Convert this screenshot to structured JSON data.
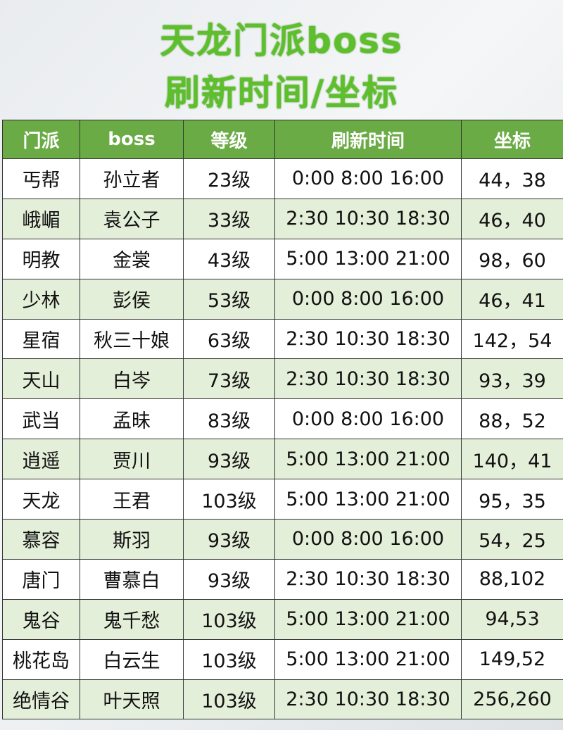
{
  "title_line1": "天龙门派boss",
  "title_line2": "刷新时间/坐标",
  "colors": {
    "title_green": "#5dbf2c",
    "header_green": "#6aab45",
    "alt_row": "#e4efd9"
  },
  "table": {
    "headers": [
      "门派",
      "boss",
      "等级",
      "刷新时间",
      "坐标"
    ],
    "rows": [
      [
        "丐帮",
        "孙立者",
        "23级",
        "0:00 8:00 16:00",
        "44，38"
      ],
      [
        "峨嵋",
        "袁公子",
        "33级",
        "2:30 10:30 18:30",
        "46，40"
      ],
      [
        "明教",
        "金裳",
        "43级",
        "5:00 13:00 21:00",
        "98，60"
      ],
      [
        "少林",
        "彭侯",
        "53级",
        "0:00 8:00 16:00",
        "46，41"
      ],
      [
        "星宿",
        "秋三十娘",
        "63级",
        "2:30 10:30 18:30",
        "142，54"
      ],
      [
        "天山",
        "白岑",
        "73级",
        "2:30 10:30 18:30",
        "93，39"
      ],
      [
        "武当",
        "孟昧",
        "83级",
        "0:00 8:00 16:00",
        "88，52"
      ],
      [
        "逍遥",
        "贾川",
        "93级",
        "5:00 13:00 21:00",
        "140，41"
      ],
      [
        "天龙",
        "王君",
        "103级",
        "5:00 13:00 21:00",
        "95，35"
      ],
      [
        "慕容",
        "斯羽",
        "93级",
        "0:00 8:00 16:00",
        "54，25"
      ],
      [
        "唐门",
        "曹慕白",
        "93级",
        "2:30 10:30 18:30",
        "88,102"
      ],
      [
        "鬼谷",
        "鬼千愁",
        "103级",
        "5:00 13:00 21:00",
        "94,53"
      ],
      [
        "桃花岛",
        "白云生",
        "103级",
        "5:00 13:00 21:00",
        "149,52"
      ],
      [
        "绝情谷",
        "叶天照",
        "103级",
        "2:30 10:30 18:30",
        "256,260"
      ]
    ]
  }
}
